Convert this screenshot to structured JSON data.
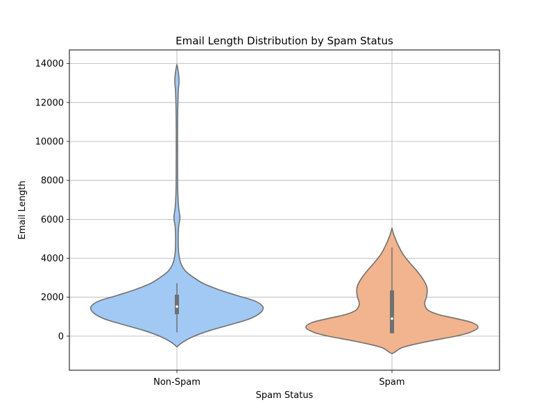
{
  "chart_data": {
    "type": "violin",
    "title": "Email Length Distribution by Spam Status",
    "xlabel": "Spam Status",
    "ylabel": "Email Length",
    "categories": [
      "Non-Spam",
      "Spam"
    ],
    "ylim": [
      -1750,
      14700
    ],
    "yticks": [
      0,
      2000,
      4000,
      6000,
      8000,
      10000,
      12000,
      14000
    ],
    "grid": true,
    "colors": [
      "#a1c9f4",
      "#f1b48e"
    ],
    "edge_color": "#707070",
    "violins": [
      {
        "category": "Non-Spam",
        "range": [
          -550,
          13950
        ],
        "quartiles": {
          "min": 200,
          "q1": 1130,
          "median": 1520,
          "q3": 2130,
          "max": 2720
        },
        "density": [
          [
            -550,
            0.0
          ],
          [
            -300,
            0.07
          ],
          [
            0,
            0.2
          ],
          [
            300,
            0.39
          ],
          [
            600,
            0.63
          ],
          [
            900,
            0.85
          ],
          [
            1200,
            0.97
          ],
          [
            1500,
            1.0
          ],
          [
            1800,
            0.91
          ],
          [
            2100,
            0.69
          ],
          [
            2400,
            0.48
          ],
          [
            2700,
            0.31
          ],
          [
            3000,
            0.2
          ],
          [
            3300,
            0.11
          ],
          [
            3600,
            0.06
          ],
          [
            3900,
            0.035
          ],
          [
            4300,
            0.02
          ],
          [
            5000,
            0.015
          ],
          [
            5600,
            0.02
          ],
          [
            6100,
            0.035
          ],
          [
            6600,
            0.02
          ],
          [
            7500,
            0.01
          ],
          [
            9000,
            0.008
          ],
          [
            11000,
            0.008
          ],
          [
            12500,
            0.015
          ],
          [
            13100,
            0.025
          ],
          [
            13600,
            0.015
          ],
          [
            13950,
            0.0
          ]
        ]
      },
      {
        "category": "Spam",
        "range": [
          -900,
          5550
        ],
        "quartiles": {
          "min": 150,
          "q1": 150,
          "median": 900,
          "q3": 2350,
          "max": 4550
        },
        "density": [
          [
            -900,
            0.0
          ],
          [
            -800,
            0.04
          ],
          [
            -600,
            0.11
          ],
          [
            -400,
            0.28
          ],
          [
            -200,
            0.5
          ],
          [
            0,
            0.74
          ],
          [
            200,
            0.91
          ],
          [
            450,
            1.0
          ],
          [
            700,
            0.93
          ],
          [
            900,
            0.75
          ],
          [
            1100,
            0.55
          ],
          [
            1300,
            0.43
          ],
          [
            1500,
            0.39
          ],
          [
            1700,
            0.38
          ],
          [
            2000,
            0.4
          ],
          [
            2300,
            0.41
          ],
          [
            2600,
            0.4
          ],
          [
            3000,
            0.35
          ],
          [
            3400,
            0.28
          ],
          [
            3800,
            0.2
          ],
          [
            4200,
            0.13
          ],
          [
            4600,
            0.08
          ],
          [
            5000,
            0.04
          ],
          [
            5300,
            0.015
          ],
          [
            5550,
            0.0
          ]
        ]
      }
    ]
  }
}
